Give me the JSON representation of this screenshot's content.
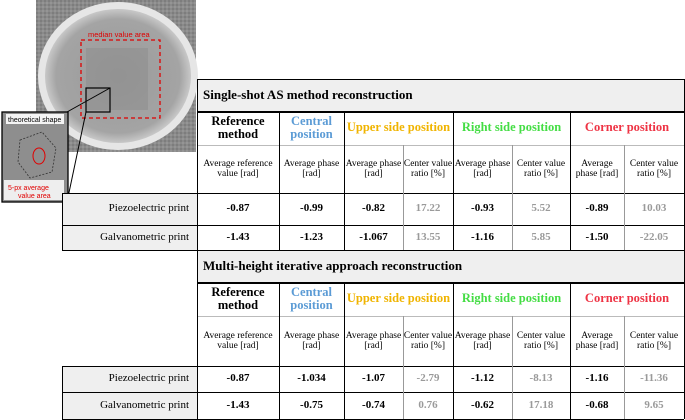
{
  "image": {
    "median_label": "median value area",
    "inset_label_top": "theoretical shape",
    "inset_label_bottom": "5-px average value area"
  },
  "colors": {
    "central": "#5b9bd5",
    "upper": "#f0b400",
    "right": "#44dd44",
    "corner": "#ee3344",
    "grey_value": "#9a9a9a",
    "section_bg": "#efefef"
  },
  "sections": [
    {
      "title": "Single-shot AS method reconstruction",
      "headers": {
        "reference": "Reference method",
        "central": "Central position",
        "upper": "Upper side position",
        "right": "Right side position",
        "corner": "Corner position"
      },
      "subheaders": {
        "ref": "Average reference value [rad]",
        "central": "Average phase [rad]",
        "avg": "Average phase [rad]",
        "ratio": "Center value ratio [%]"
      },
      "rows": [
        {
          "label": "Piezoelectric print",
          "ref": "-0.87",
          "central": "-0.99",
          "upper_avg": "-0.82",
          "upper_ratio": "17.22",
          "right_avg": "-0.93",
          "right_ratio": "5.52",
          "corner_avg": "-0.89",
          "corner_ratio": "10.03"
        },
        {
          "label": "Galvanometric print",
          "ref": "-1.43",
          "central": "-1.23",
          "upper_avg": "-1.067",
          "upper_ratio": "13.55",
          "right_avg": "-1.16",
          "right_ratio": "5.85",
          "corner_avg": "-1.50",
          "corner_ratio": "-22.05"
        }
      ]
    },
    {
      "title": "Multi-height iterative approach reconstruction",
      "headers": {
        "reference": "Reference method",
        "central": "Central position",
        "upper": "Upper side position",
        "right": "Right side position",
        "corner": "Corner position"
      },
      "subheaders": {
        "ref": "Average reference value [rad]",
        "central": "Average phase [rad]",
        "avg": "Average phase [rad]",
        "ratio": "Center value ratio [%]"
      },
      "rows": [
        {
          "label": "Piezoelectric print",
          "ref": "-0.87",
          "central": "-1.034",
          "upper_avg": "-1.07",
          "upper_ratio": "-2.79",
          "right_avg": "-1.12",
          "right_ratio": "-8.13",
          "corner_avg": "-1.16",
          "corner_ratio": "-11.36"
        },
        {
          "label": "Galvanometric print",
          "ref": "-1.43",
          "central": "-0.75",
          "upper_avg": "-0.74",
          "upper_ratio": "0.76",
          "right_avg": "-0.62",
          "right_ratio": "17.18",
          "corner_avg": "-0.68",
          "corner_ratio": "9.65"
        }
      ]
    }
  ]
}
